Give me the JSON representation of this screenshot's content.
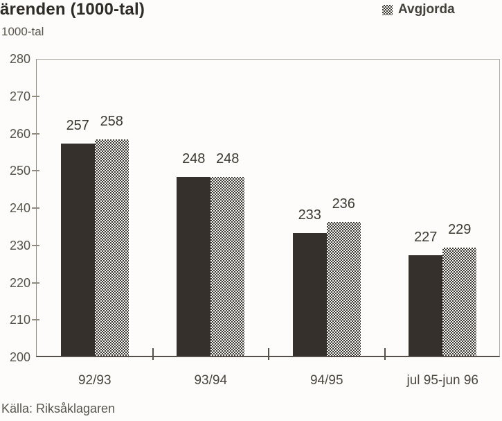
{
  "header": {
    "title": "ärenden (1000-tal)",
    "unit_label": "1000-tal"
  },
  "legend": {
    "items": [
      {
        "label": "Avgjorda",
        "marker": "checker-square-icon"
      }
    ]
  },
  "footer": {
    "source": "Källa: Riksåklagaren"
  },
  "colors": {
    "background": "#fdfcfa",
    "solid_bar": "#35302b",
    "checker_dark": "#3b3732",
    "checker_light": "#f8f6f2",
    "frame": "#b3afa7",
    "axis": "#55514a",
    "text_dark": "#2e2a26",
    "text_gray": "#5a564f"
  },
  "chart_data": {
    "type": "bar",
    "title": "ärenden (1000-tal)",
    "ylabel": "1000-tal",
    "categories": [
      "92/93",
      "93/94",
      "94/95",
      "jul 95-jun 96"
    ],
    "series": [
      {
        "name": "",
        "style": "solid",
        "values": [
          257,
          248,
          233,
          227
        ]
      },
      {
        "name": "Avgjorda",
        "style": "checker",
        "values": [
          258,
          248,
          236,
          229
        ]
      }
    ],
    "ylim": [
      200,
      280
    ],
    "yticks": [
      200,
      210,
      220,
      230,
      240,
      250,
      260,
      270,
      280
    ],
    "grid": false,
    "legend_position": "top-right",
    "source": "Källa: Riksåklagaren"
  }
}
